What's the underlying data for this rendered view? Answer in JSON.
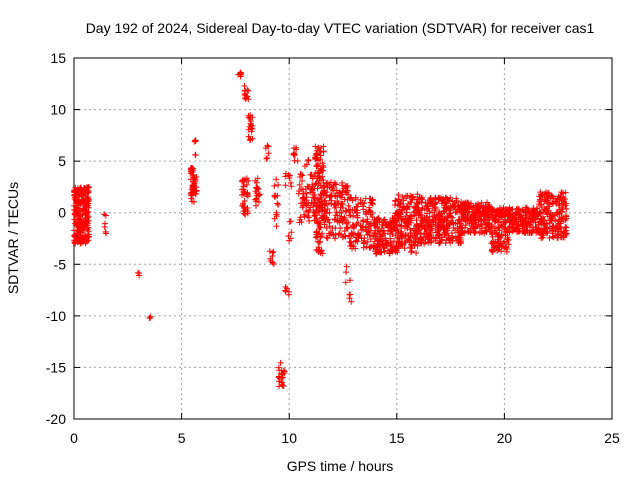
{
  "chart_data": {
    "type": "scatter",
    "title": "Day 192 of 2024, Sidereal Day-to-day VTEC variation (SDTVAR) for receiver cas1",
    "xlabel": "GPS time / hours",
    "ylabel": "SDTVAR / TECUs",
    "xlim": [
      0,
      25
    ],
    "ylim": [
      -20,
      15
    ],
    "xticks": [
      0,
      5,
      10,
      15,
      20,
      25
    ],
    "yticks": [
      -20,
      -15,
      -10,
      -5,
      0,
      5,
      10,
      15
    ],
    "grid": true,
    "marker": "+",
    "color": "#ff0000",
    "series": [
      {
        "name": "SDTVAR",
        "clusters": [
          {
            "x": [
              0.0,
              0.7
            ],
            "y": [
              -3.0,
              2.5
            ],
            "n": 260
          },
          {
            "x": [
              1.4,
              1.5
            ],
            "y": [
              -2.0,
              0.0
            ],
            "n": 6
          },
          {
            "x": [
              2.95,
              3.05
            ],
            "y": [
              -6.1,
              -5.8
            ],
            "n": 3
          },
          {
            "x": [
              3.5,
              3.6
            ],
            "y": [
              -10.3,
              -9.7
            ],
            "n": 3
          },
          {
            "x": [
              5.4,
              5.7
            ],
            "y": [
              1.0,
              4.4
            ],
            "n": 50
          },
          {
            "x": [
              5.6,
              5.7
            ],
            "y": [
              5.5,
              8.8
            ],
            "n": 6
          },
          {
            "x": [
              7.6,
              7.8
            ],
            "y": [
              13.2,
              13.6
            ],
            "n": 8
          },
          {
            "x": [
              7.8,
              8.1
            ],
            "y": [
              -0.3,
              3.5
            ],
            "n": 40
          },
          {
            "x": [
              7.9,
              8.1
            ],
            "y": [
              11.0,
              12.3
            ],
            "n": 14
          },
          {
            "x": [
              8.1,
              8.3
            ],
            "y": [
              7.0,
              9.5
            ],
            "n": 20
          },
          {
            "x": [
              8.4,
              8.7
            ],
            "y": [
              0.5,
              3.5
            ],
            "n": 20
          },
          {
            "x": [
              8.9,
              9.1
            ],
            "y": [
              4.8,
              6.8
            ],
            "n": 6
          },
          {
            "x": [
              9.1,
              9.3
            ],
            "y": [
              -5.8,
              -3.5
            ],
            "n": 8
          },
          {
            "x": [
              9.3,
              9.5
            ],
            "y": [
              -1.5,
              3.5
            ],
            "n": 14
          },
          {
            "x": [
              9.5,
              9.8
            ],
            "y": [
              -17.0,
              -14.5
            ],
            "n": 22
          },
          {
            "x": [
              9.8,
              10.0
            ],
            "y": [
              -8.5,
              -7.2
            ],
            "n": 6
          },
          {
            "x": [
              9.8,
              10.1
            ],
            "y": [
              2.0,
              4.0
            ],
            "n": 8
          },
          {
            "x": [
              9.9,
              10.1
            ],
            "y": [
              -2.8,
              -0.5
            ],
            "n": 6
          },
          {
            "x": [
              10.2,
              10.4
            ],
            "y": [
              4.8,
              6.9
            ],
            "n": 10
          },
          {
            "x": [
              10.7,
              10.9
            ],
            "y": [
              4.5,
              5.2
            ],
            "n": 4
          },
          {
            "x": [
              10.4,
              11.2
            ],
            "y": [
              -1.0,
              4.0
            ],
            "n": 70
          },
          {
            "x": [
              11.2,
              11.6
            ],
            "y": [
              -4.0,
              6.5
            ],
            "n": 120
          },
          {
            "x": [
              11.6,
              12.8
            ],
            "y": [
              -2.5,
              3.0
            ],
            "n": 140
          },
          {
            "x": [
              12.6,
              12.9
            ],
            "y": [
              -8.8,
              -4.5
            ],
            "n": 8
          },
          {
            "x": [
              12.8,
              13.9
            ],
            "y": [
              -3.5,
              1.5
            ],
            "n": 110
          },
          {
            "x": [
              13.9,
              14.9
            ],
            "y": [
              -4.0,
              -0.5
            ],
            "n": 130
          },
          {
            "x": [
              14.9,
              16.0
            ],
            "y": [
              -4.0,
              1.8
            ],
            "n": 190
          },
          {
            "x": [
              16.0,
              18.0
            ],
            "y": [
              -3.0,
              1.5
            ],
            "n": 320
          },
          {
            "x": [
              18.0,
              19.4
            ],
            "y": [
              -2.0,
              1.0
            ],
            "n": 200
          },
          {
            "x": [
              19.4,
              20.2
            ],
            "y": [
              -3.8,
              0.5
            ],
            "n": 130
          },
          {
            "x": [
              20.2,
              21.6
            ],
            "y": [
              -2.0,
              0.5
            ],
            "n": 180
          },
          {
            "x": [
              21.6,
              22.9
            ],
            "y": [
              -2.5,
              2.0
            ],
            "n": 200
          }
        ]
      }
    ]
  }
}
